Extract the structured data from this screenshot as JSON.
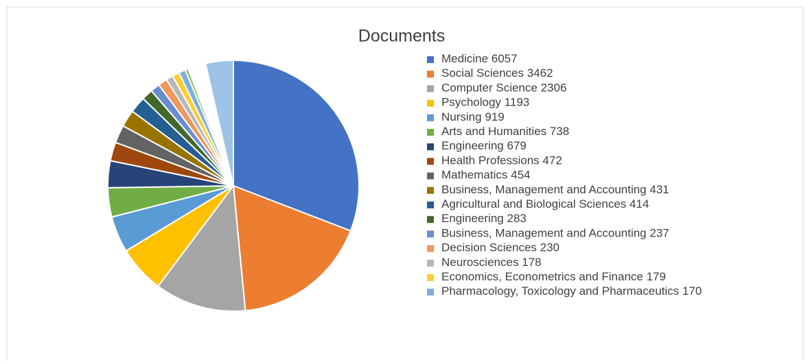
{
  "chart_data": {
    "type": "pie",
    "title": "Documents",
    "categories": [
      "Medicine",
      "Social Sciences",
      "Computer Science",
      "Psychology",
      "Nursing",
      "Arts and Humanities",
      "Engineering",
      "Health Professions",
      "Mathematics",
      "Business, Management and Accounting",
      "Agricultural and Biological Sciences",
      "Engineering",
      "Business, Management and Accounting",
      "Decision Sciences",
      "Neurosciences",
      "Economics, Econometrics and Finance",
      "Pharmacology, Toxicology and Pharmaceutics",
      null,
      null,
      null
    ],
    "values": [
      6057,
      3462,
      2306,
      1193,
      919,
      738,
      679,
      472,
      454,
      431,
      414,
      283,
      237,
      230,
      178,
      179,
      170,
      80,
      450,
      700
    ],
    "colors": [
      "#4472c4",
      "#ed7d31",
      "#a5a5a5",
      "#ffc000",
      "#5b9bd5",
      "#70ad47",
      "#264478",
      "#9e480e",
      "#636363",
      "#997300",
      "#255e91",
      "#43682b",
      "#698ed0",
      "#f1975a",
      "#b7b7b7",
      "#ffcd33",
      "#7cafdd",
      "#8cc168",
      "#ffffff",
      "#9dc3e6"
    ],
    "legend": "right"
  }
}
